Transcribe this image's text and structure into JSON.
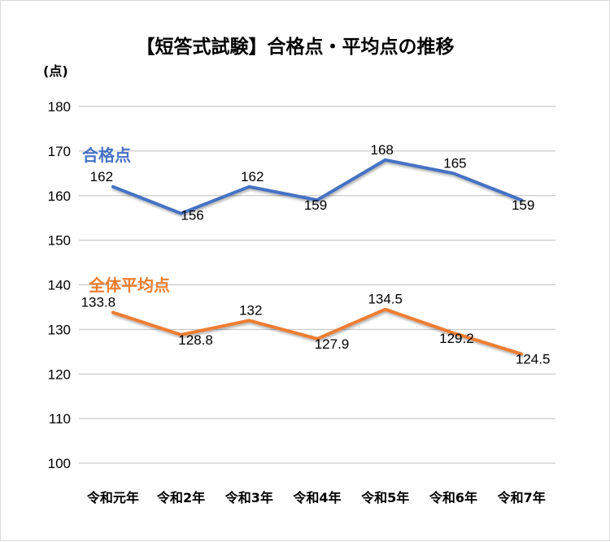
{
  "chart_data": {
    "type": "line",
    "title": "【短答式試験】合格点・平均点の推移",
    "ylabel": "(点)",
    "xlabel": "",
    "ylim": [
      100,
      180
    ],
    "yticks": [
      100,
      110,
      120,
      130,
      140,
      150,
      160,
      170,
      180
    ],
    "grid": true,
    "categories": [
      "令和元年",
      "令和2年",
      "令和3年",
      "令和4年",
      "令和5年",
      "令和6年",
      "令和7年"
    ],
    "series": [
      {
        "name": "合格点",
        "color": "#4472c4",
        "values": [
          162,
          156,
          162,
          159,
          168,
          165,
          159
        ]
      },
      {
        "name": "全体平均点",
        "color": "#ed7d31",
        "values": [
          133.8,
          128.8,
          132,
          127.9,
          134.5,
          129.2,
          124.5
        ]
      }
    ]
  }
}
